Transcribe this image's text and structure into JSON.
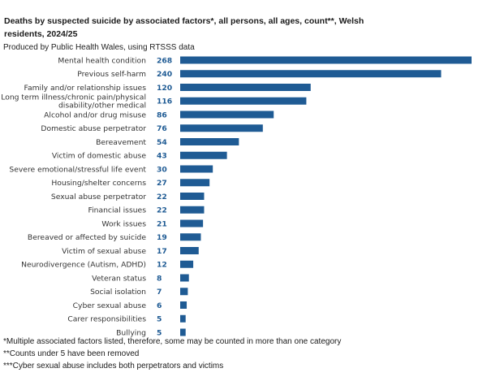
{
  "chart_data": {
    "type": "bar",
    "orientation": "horizontal",
    "title": "Deaths by suspected suicide by associated factors*, all persons, all ages, count**, Welsh residents, 2024/25",
    "subtitle": "Produced by Public Health Wales, using RTSSS data",
    "xlabel": "",
    "ylabel": "",
    "xlim": [
      0,
      268
    ],
    "grid": false,
    "legend": "none",
    "bar_color": "#1f5b94",
    "categories": [
      "Mental health condition",
      "Previous self-harm",
      "Family and/or relationship issues",
      "Long term illness/chronic pain/physical disability/other medical",
      "Alcohol and/or drug misuse",
      "Domestic abuse perpetrator",
      "Bereavement",
      "Victim of domestic abuse",
      "Severe emotional/stressful life event",
      "Housing/shelter concerns",
      "Sexual abuse perpetrator",
      "Financial issues",
      "Work issues",
      "Bereaved or affected by suicide",
      "Victim of sexual abuse",
      "Neurodivergence (Autism, ADHD)",
      "Veteran status",
      "Social isolation",
      "Cyber sexual abuse",
      "Carer responsibilities",
      "Bullying"
    ],
    "category_lines": [
      [
        "Mental health condition"
      ],
      [
        "Previous self-harm"
      ],
      [
        "Family and/or relationship issues"
      ],
      [
        "Long term illness/chronic pain/physical",
        "disability/other medical"
      ],
      [
        "Alcohol and/or drug misuse"
      ],
      [
        "Domestic abuse perpetrator"
      ],
      [
        "Bereavement"
      ],
      [
        "Victim of domestic abuse"
      ],
      [
        "Severe emotional/stressful life event"
      ],
      [
        "Housing/shelter concerns"
      ],
      [
        "Sexual abuse perpetrator"
      ],
      [
        "Financial issues"
      ],
      [
        "Work issues"
      ],
      [
        "Bereaved or affected by suicide"
      ],
      [
        "Victim of sexual abuse"
      ],
      [
        "Neurodivergence (Autism, ADHD)"
      ],
      [
        "Veteran status"
      ],
      [
        "Social isolation"
      ],
      [
        "Cyber sexual abuse"
      ],
      [
        "Carer responsibilities"
      ],
      [
        "Bullying"
      ]
    ],
    "values": [
      268,
      240,
      120,
      116,
      86,
      76,
      54,
      43,
      30,
      27,
      22,
      22,
      21,
      19,
      17,
      12,
      8,
      7,
      6,
      5,
      5
    ]
  },
  "notes": [
    "*Multiple associated factors listed, therefore, some may be counted in more than one category",
    "**Counts under 5 have been removed",
    "***Cyber sexual abuse includes both perpetrators and victims"
  ]
}
